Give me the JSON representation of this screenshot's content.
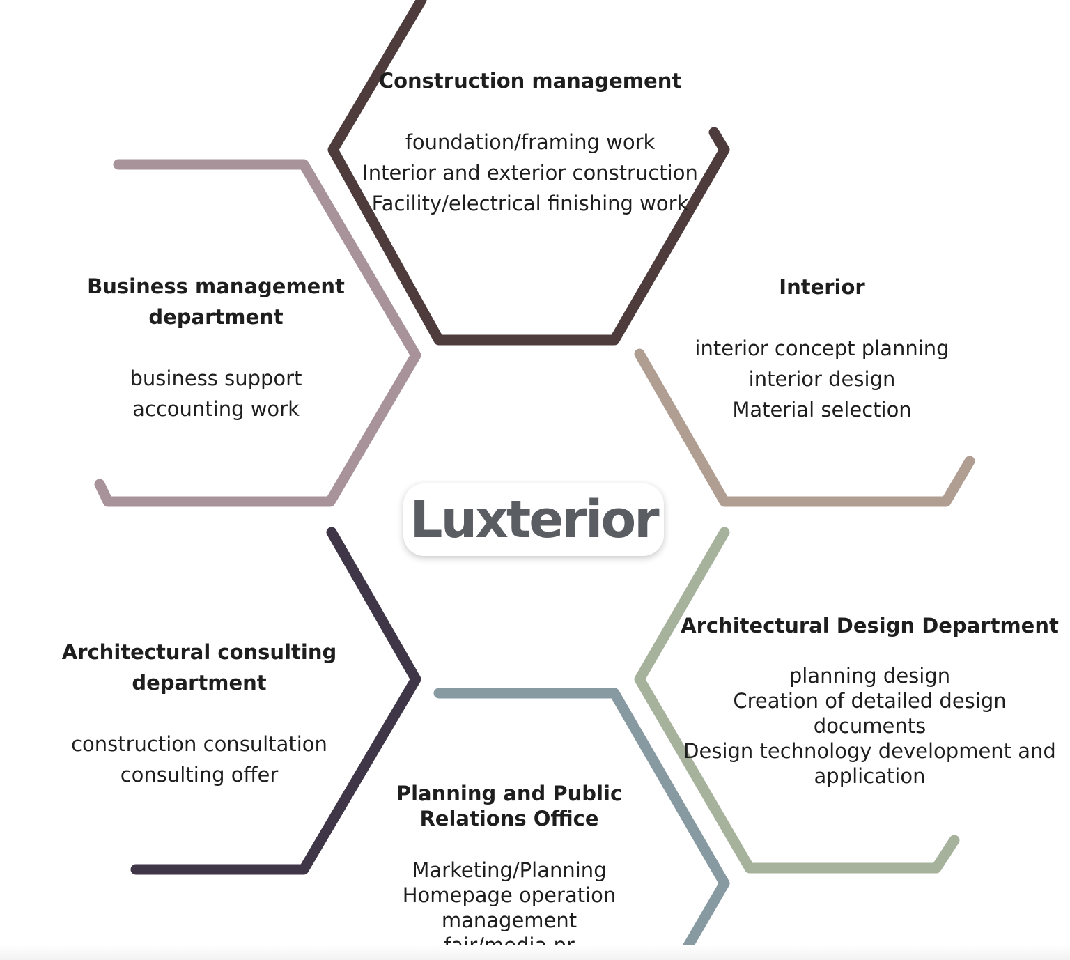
{
  "brand": {
    "name": "Luxterior",
    "color": "#5a5d62"
  },
  "departments": {
    "construction": {
      "title": "Construction management",
      "items": [
        "foundation/framing work",
        "Interior and exterior construction",
        "Facility/electrical finishing work"
      ],
      "line_color": "#4e3c3c"
    },
    "business": {
      "title_line1": "Business management",
      "title_line2": "department",
      "items": [
        "business support",
        "accounting work"
      ],
      "line_color": "#a8939a"
    },
    "interior": {
      "title": "Interior",
      "items": [
        "interior concept planning",
        "interior design",
        "Material selection"
      ],
      "line_color": "#b09e92"
    },
    "consulting": {
      "title": "Architectural consulting department",
      "items": [
        "construction consultation",
        "consulting offer"
      ],
      "line_color": "#3f3647"
    },
    "design": {
      "title": "Architectural Design Department",
      "items": [
        "planning design",
        "Creation of detailed design documents",
        "Design technology development and",
        "application"
      ],
      "line_color": "#a7b29c"
    },
    "planning": {
      "title_line1": "Planning and Public",
      "title_line2": "Relations Office",
      "items": [
        "Marketing/Planning",
        "Homepage operation management",
        "fair/media pr"
      ],
      "line_color": "#8799a1"
    }
  }
}
